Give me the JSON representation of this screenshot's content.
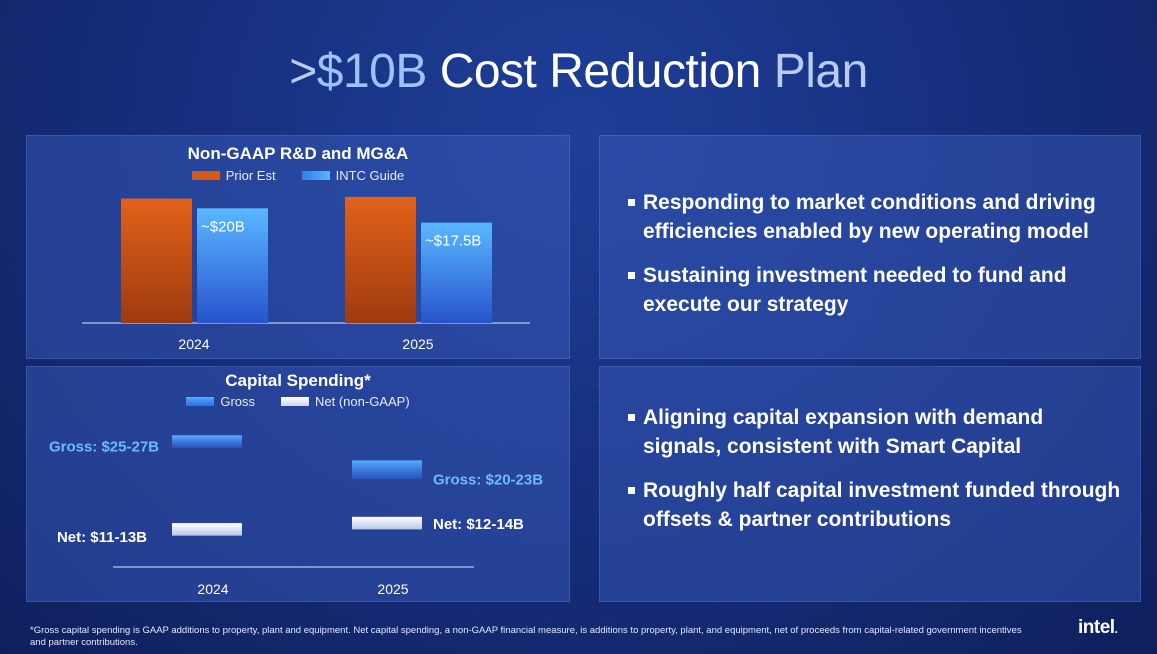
{
  "slide": {
    "title_prefix": ">",
    "title_amount": "$10B",
    "title_main": " Cost Reduction",
    "title_end": " Plan"
  },
  "bullets_top": [
    "Responding to market conditions and driving efficiencies enabled by new operating model",
    "Sustaining investment needed to fund and execute our strategy"
  ],
  "bullets_bottom": [
    "Aligning capital expansion with demand signals, consistent with Smart Capital",
    "Roughly half capital investment funded through offsets & partner contributions"
  ],
  "footnote": "*Gross capital spending is GAAP additions to property, plant and equipment. Net capital spending, a non-GAAP financial measure, is additions to property, plant, and equipment, net of proceeds from capital-related government incentives and partner contributions.",
  "logo": {
    "text": "intel",
    "dot": "."
  },
  "colors": {
    "prior": "#d85a18",
    "guide": "#3f95f2",
    "gross": "#3f8ff0",
    "net": "#ffffff",
    "gross_label": "#6fb8ff"
  },
  "chart_data": [
    {
      "type": "bar",
      "title": "Non-GAAP R&D and MG&A",
      "categories": [
        "2024",
        "2025"
      ],
      "series": [
        {
          "name": "Prior Est",
          "values": [
            21.7,
            22.0
          ]
        },
        {
          "name": "INTC Guide",
          "values": [
            20.0,
            17.5
          ]
        }
      ],
      "data_labels": [
        "~$20B",
        "~$17.5B"
      ],
      "ylim": [
        0,
        22.5
      ],
      "legend": "top-center",
      "grid": false
    },
    {
      "type": "bar",
      "title": "Capital Spending*",
      "categories": [
        "2024",
        "2025"
      ],
      "series": [
        {
          "name": "Gross",
          "ranges": [
            [
              25,
              27
            ],
            [
              20,
              23
            ]
          ],
          "labels": [
            "Gross: $25-27B",
            "Gross: $20-23B"
          ]
        },
        {
          "name": "Net (non-GAAP)",
          "ranges": [
            [
              11,
              13
            ],
            [
              12,
              14
            ]
          ],
          "labels": [
            "Net: $11-13B",
            "Net: $12-14B"
          ]
        }
      ],
      "ylim": [
        0,
        30
      ],
      "legend": "top-center",
      "grid": false
    }
  ]
}
